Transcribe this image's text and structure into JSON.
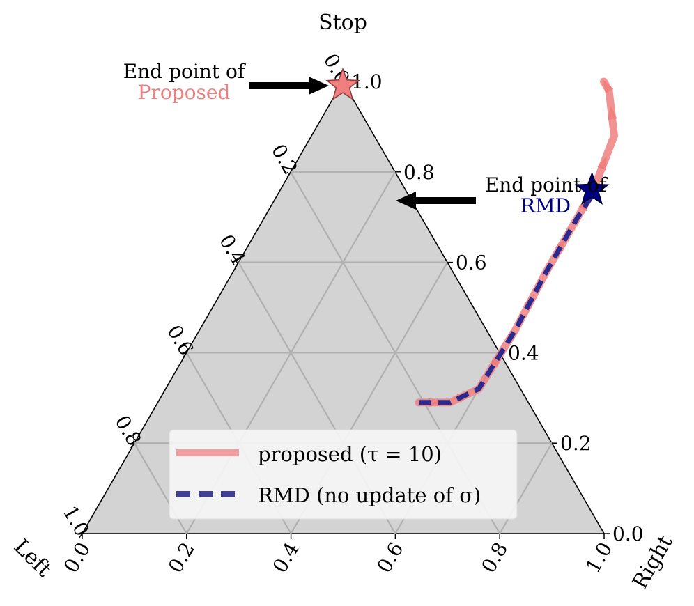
{
  "chart_data": {
    "type": "ternary",
    "corner_labels": {
      "top": "Stop",
      "left": "Left",
      "right": "Right"
    },
    "ticks": {
      "left_edge": [
        "0.0",
        "0.2",
        "0.4",
        "0.6",
        "0.8",
        "1.0"
      ],
      "bottom_edge": [
        "0.0",
        "0.2",
        "0.4",
        "0.6",
        "0.8",
        "1.0"
      ],
      "right_edge": [
        "0.0",
        "0.2",
        "0.4",
        "0.6",
        "0.8",
        "1.0"
      ]
    },
    "grid": true,
    "series": [
      {
        "name": "proposed (τ = 10)",
        "style": "solid",
        "color": "#f08080",
        "points": [
          {
            "right": 0.5,
            "stop": 0.29
          },
          {
            "right": 0.56,
            "stop": 0.29
          },
          {
            "right": 0.6,
            "stop": 0.32
          },
          {
            "right": 0.605,
            "stop": 0.45
          },
          {
            "right": 0.6,
            "stop": 0.58
          },
          {
            "right": 0.6,
            "stop": 0.7
          },
          {
            "right": 0.6,
            "stop": 0.76
          },
          {
            "right": 0.58,
            "stop": 0.88
          },
          {
            "right": 0.52,
            "stop": 0.98
          },
          {
            "right": 0.5,
            "stop": 1.0
          }
        ]
      },
      {
        "name": "RMD (no update of σ)",
        "style": "dashed",
        "color": "#2b2b8f",
        "points": [
          {
            "right": 0.5,
            "stop": 0.29
          },
          {
            "right": 0.56,
            "stop": 0.29
          },
          {
            "right": 0.6,
            "stop": 0.32
          },
          {
            "right": 0.605,
            "stop": 0.45
          },
          {
            "right": 0.6,
            "stop": 0.58
          },
          {
            "right": 0.6,
            "stop": 0.7
          },
          {
            "right": 0.605,
            "stop": 0.76
          }
        ]
      }
    ],
    "end_points": [
      {
        "series": "proposed (τ = 10)",
        "right": 0.0,
        "stop": 1.0,
        "marker": "star",
        "color": "#f08080"
      },
      {
        "series": "RMD (no update of σ)",
        "right": 0.09,
        "stop": 0.73,
        "marker": "star",
        "color": "#000080"
      }
    ],
    "annotations": [
      {
        "line1": "End point of",
        "line2": "Proposed",
        "line2_color": "#f08080"
      },
      {
        "line1": "End point of",
        "line2": "RMD",
        "line2_color": "#000080"
      }
    ],
    "legend": {
      "placement": "lower-right",
      "entries": [
        "proposed (τ = 10)",
        "RMD (no update of σ)"
      ]
    }
  }
}
